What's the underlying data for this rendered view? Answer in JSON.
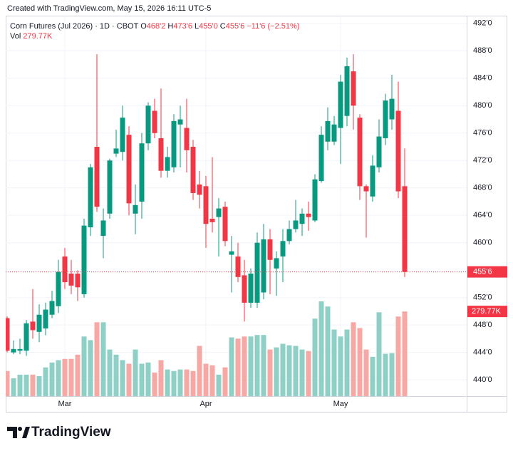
{
  "header": "Created with TradingView.com, May 15, 2026 16:11 UTC-5",
  "chart_data": {
    "type": "candlestick",
    "legend": {
      "symbol": "Corn Futures (Jul 2026) · 1D · CBOT",
      "ohlc": [
        {
          "key": "O",
          "text": "468'2"
        },
        {
          "key": "H",
          "text": "473'6"
        },
        {
          "key": "L",
          "text": "455'0"
        },
        {
          "key": "C",
          "text": "455'6"
        }
      ],
      "change": "−11'6 (−2.51%)",
      "volume_key": "Vol"
    },
    "last_price_label": "455'6",
    "volume_label": "279.77K",
    "categories": [
      null,
      null,
      null,
      null,
      null,
      null,
      null,
      null,
      null,
      "Mar",
      null,
      null,
      null,
      null,
      null,
      null,
      null,
      null,
      null,
      null,
      null,
      null,
      null,
      null,
      null,
      null,
      null,
      null,
      null,
      null,
      null,
      "Apr",
      null,
      null,
      null,
      null,
      null,
      null,
      null,
      null,
      null,
      null,
      null,
      null,
      null,
      null,
      null,
      null,
      null,
      null,
      null,
      null,
      "May",
      null,
      null,
      null,
      null,
      null,
      null,
      null,
      null,
      null,
      null
    ],
    "open": [
      449,
      444,
      444.25,
      444.25,
      448.5,
      447,
      447.5,
      449.5,
      450.75,
      458,
      455.5,
      455.5,
      452.5,
      462.25,
      474,
      461,
      464.25,
      473,
      473.25,
      475.75,
      464.25,
      466,
      474.5,
      479.25,
      475.25,
      470.5,
      471,
      477.25,
      476.75,
      474,
      468.5,
      468.25,
      463.5,
      463.75,
      465.25,
      458.25,
      458,
      455.25,
      451.25,
      451.25,
      452.75,
      460.5,
      456.25,
      458,
      460.25,
      462,
      462.75,
      464.25,
      463.25,
      469,
      474.75,
      474.75,
      476.75,
      478.5,
      485,
      478.25,
      468.25,
      466.75,
      471,
      475.25,
      478,
      479.25,
      468.25
    ],
    "high": [
      449.25,
      445.75,
      446,
      448.75,
      453.25,
      451,
      451.25,
      453,
      457.5,
      459.25,
      457.5,
      456,
      463.5,
      471.5,
      487.5,
      465,
      472.25,
      476.5,
      480,
      477,
      468.5,
      476,
      480.5,
      481,
      482.5,
      474,
      478.75,
      480,
      481,
      475,
      470.5,
      469.75,
      472.5,
      466.5,
      466,
      461,
      460,
      457.5,
      456.25,
      461.5,
      462.75,
      462,
      458.75,
      462,
      463.25,
      466.25,
      465,
      466,
      470,
      477,
      479.75,
      478.5,
      484.5,
      487,
      487.5,
      478.75,
      468.5,
      472.75,
      478,
      481.75,
      484.5,
      483.5,
      473.75
    ],
    "low": [
      444,
      443.75,
      443.75,
      443.5,
      446,
      445.5,
      446.5,
      449,
      449.75,
      453.25,
      452.5,
      451.5,
      452,
      461,
      464.5,
      457.75,
      463.5,
      472.5,
      472,
      464,
      461.25,
      463.5,
      473.5,
      475.25,
      469.5,
      469.5,
      470.25,
      471,
      470.25,
      466.25,
      465,
      459.25,
      461.5,
      458,
      459.5,
      452.75,
      454.25,
      448.5,
      450.5,
      450.5,
      451.75,
      452.5,
      452.25,
      454.25,
      459.75,
      461.5,
      461,
      461.75,
      463,
      468.75,
      473.5,
      474.25,
      471.5,
      477,
      476.5,
      466.25,
      460.75,
      466,
      470.25,
      474.25,
      476.5,
      466.5,
      455
    ],
    "close": [
      444.25,
      444.5,
      444.5,
      448.25,
      447.25,
      449.5,
      450.25,
      451.5,
      455.75,
      454.25,
      453.75,
      453.5,
      462.5,
      471,
      465.25,
      463.25,
      472,
      473.75,
      478.25,
      465.75,
      465.5,
      474.5,
      480,
      476,
      470.5,
      472.5,
      477.75,
      478,
      473.5,
      467.25,
      467,
      462.75,
      463,
      465,
      460.25,
      458.75,
      455,
      451.25,
      455.5,
      460,
      460.5,
      457.5,
      457.75,
      460.25,
      462,
      463.25,
      464.25,
      463.75,
      469.25,
      475.75,
      477.75,
      477.25,
      483.5,
      485.75,
      480,
      468.25,
      467.5,
      471.25,
      475.5,
      480.75,
      481,
      467.5,
      455.75
    ],
    "volume": [
      83000,
      59000,
      71000,
      71000,
      71000,
      66000,
      95000,
      111000,
      119000,
      123000,
      123000,
      137000,
      197000,
      185000,
      244000,
      244000,
      154000,
      137000,
      119000,
      107000,
      154000,
      107000,
      111000,
      78000,
      119000,
      88000,
      83000,
      88000,
      88000,
      83000,
      166000,
      107000,
      102000,
      71000,
      95000,
      194000,
      190000,
      197000,
      197000,
      202000,
      202000,
      154000,
      161000,
      173000,
      168000,
      166000,
      154000,
      149000,
      256000,
      313000,
      296000,
      220000,
      197000,
      220000,
      244000,
      225000,
      154000,
      130000,
      277000,
      140000,
      142000,
      263000,
      279770
    ],
    "up_color": "#089981",
    "down_color": "#f23645",
    "volume_up_color": "#8fd0c6",
    "volume_down_color": "#f7a8a4",
    "ylim": [
      437.625,
      493.125
    ],
    "yticks": [
      {
        "value": 440,
        "label": "440'0"
      },
      {
        "value": 444,
        "label": "444'0"
      },
      {
        "value": 448,
        "label": "448'0"
      },
      {
        "value": 452,
        "label": "452'0"
      },
      {
        "value": 460,
        "label": "460'0"
      },
      {
        "value": 464,
        "label": "464'0"
      },
      {
        "value": 468,
        "label": "468'0"
      },
      {
        "value": 472,
        "label": "472'0"
      },
      {
        "value": 476,
        "label": "476'0"
      },
      {
        "value": 480,
        "label": "480'0"
      },
      {
        "value": 484,
        "label": "484'0"
      },
      {
        "value": 488,
        "label": "488'0"
      },
      {
        "value": 492,
        "label": "492'0"
      }
    ],
    "grid": true
  },
  "footer": {
    "brand": "TradingView"
  }
}
